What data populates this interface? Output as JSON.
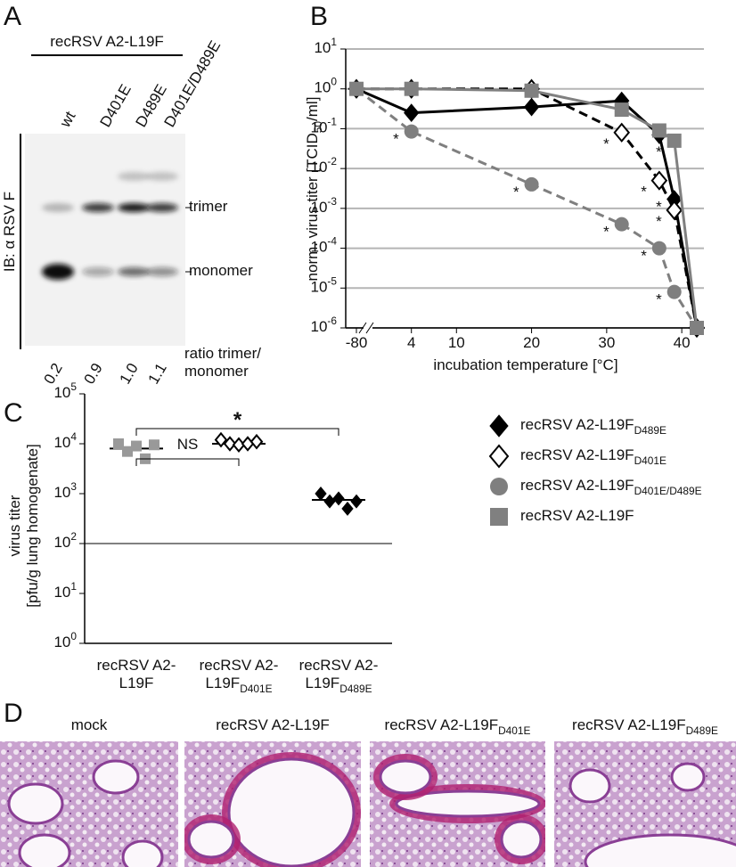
{
  "panels": [
    "A",
    "B",
    "C",
    "D"
  ],
  "blot": {
    "construct": "recRSV A2-L19F",
    "lanes": [
      "wt",
      "D401E",
      "D489E",
      "D401E/D489E"
    ],
    "antibody": "IB: α RSV F",
    "bands": [
      "trimer",
      "monomer"
    ],
    "ratios": [
      "0.2",
      "0.9",
      "1.0",
      "1.1"
    ],
    "ratio_label": "ratio trimer/\nmonomer"
  },
  "chart_data": [
    {
      "type": "line",
      "y_label": "norm. virus titer [TCID_{50}/ml]",
      "x_label": "incubation temperature [°C]",
      "x": [
        -80,
        4,
        20,
        32,
        37,
        39,
        42
      ],
      "xlim": [
        -80,
        42
      ],
      "x_break": [
        -80,
        0
      ],
      "xticks": [
        -80,
        4,
        10,
        20,
        30,
        40
      ],
      "ylim": [
        1e-06,
        10
      ],
      "log_y": true,
      "grid": true,
      "yticks": [
        {
          "value": 10,
          "label": "10^{1}"
        },
        {
          "value": 1,
          "label": "10^{0}"
        },
        {
          "value": 0.1,
          "label": "10^{-1}"
        },
        {
          "value": 0.01,
          "label": "10^{-2}"
        },
        {
          "value": 0.001,
          "label": "10^{-3}"
        },
        {
          "value": 0.0001,
          "label": "10^{-4}"
        },
        {
          "value": 1e-05,
          "label": "10^{-5}"
        },
        {
          "value": 1e-06,
          "label": "10^{-6}"
        }
      ],
      "series": [
        {
          "name": "recRSV A2-L19F_{D489E}",
          "color": "#000000",
          "marker": "diamond",
          "dashed": false,
          "values": [
            1,
            0.25,
            0.35,
            0.5,
            0.07,
            0.0017,
            1e-06
          ],
          "significance": [
            null,
            null,
            null,
            null,
            null,
            "*",
            null
          ]
        },
        {
          "name": "recRSV A2-L19F_{D401E}",
          "color": "#000000",
          "marker": "diamond-open",
          "dashed": true,
          "values": [
            1,
            1,
            1,
            0.08,
            0.005,
            0.0009,
            1e-06
          ],
          "significance": [
            null,
            null,
            null,
            "*",
            "*",
            "*",
            null
          ]
        },
        {
          "name": "recRSV A2-L19F_{D401E/D489E}",
          "color": "#7f7f7f",
          "marker": "circle",
          "dashed": true,
          "values": [
            1,
            0.085,
            0.004,
            0.0004,
            0.0001,
            8e-06,
            1e-06
          ],
          "significance": [
            null,
            "*",
            "*",
            "*",
            "*",
            "*",
            null
          ]
        },
        {
          "name": "recRSV A2-L19F",
          "color": "#808080",
          "marker": "square",
          "dashed": false,
          "values": [
            1,
            1,
            0.9,
            0.3,
            0.09,
            0.05,
            1e-06
          ],
          "significance": [
            null,
            null,
            null,
            null,
            null,
            "*",
            null
          ]
        }
      ]
    },
    {
      "type": "dot",
      "y_label": "virus titer\n[pfu/g lung homogenate]",
      "categories": [
        "recRSV A2-\nL19F",
        "recRSV A2-\nL19F_{D401E}",
        "recRSV A2-\nL19F_{D489E}"
      ],
      "values": [
        8000,
        10000,
        750
      ],
      "points": [
        [
          10000,
          7000,
          9000,
          5000,
          9500
        ],
        [
          12000,
          10000,
          9500,
          10000,
          11000
        ],
        [
          1000,
          700,
          800,
          500,
          700
        ]
      ],
      "markers": [
        "square",
        "diamond-open",
        "diamond"
      ],
      "colors": [
        "#999999",
        "#000000",
        "#000000"
      ],
      "ylim": [
        1,
        100000
      ],
      "log_y": true,
      "reference_line": 100,
      "yticks": [
        {
          "value": 100000,
          "label": "10^{5}"
        },
        {
          "value": 10000,
          "label": "10^{4}"
        },
        {
          "value": 1000,
          "label": "10^{3}"
        },
        {
          "value": 100,
          "label": "10^{2}"
        },
        {
          "value": 10,
          "label": "10^{1}"
        },
        {
          "value": 1,
          "label": "10^{0}"
        }
      ],
      "comparisons": [
        {
          "from": 0,
          "to": 2,
          "label": "*"
        },
        {
          "from": 0,
          "to": 1,
          "label": "NS"
        }
      ]
    }
  ],
  "histology": {
    "titles": [
      "mock",
      "recRSV A2-L19F",
      "recRSV A2-L19F_{D401E}",
      "recRSV A2-L19F_{D489E}"
    ]
  }
}
